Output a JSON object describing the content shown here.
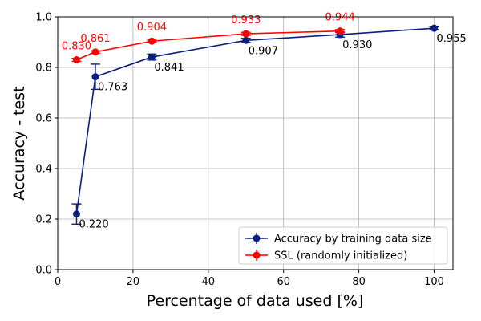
{
  "chart_data": {
    "type": "line",
    "title": "",
    "xlabel": "Percentage of data used [%]",
    "ylabel": "Accuracy - test",
    "xlim": [
      0,
      105
    ],
    "ylim": [
      0.0,
      1.0
    ],
    "xticks": [
      0,
      20,
      40,
      60,
      80,
      100
    ],
    "yticks": [
      0.0,
      0.2,
      0.4,
      0.6,
      0.8,
      1.0
    ],
    "xtick_labels": [
      "0",
      "20",
      "40",
      "60",
      "80",
      "100"
    ],
    "ytick_labels": [
      "0.0",
      "0.2",
      "0.4",
      "0.6",
      "0.8",
      "1.0"
    ],
    "grid": true,
    "legend_position": "bottom-right",
    "series": [
      {
        "name": "Accuracy by training data size",
        "color": "#0a1f7f",
        "marker": "circle",
        "x": [
          5,
          10,
          25,
          50,
          75,
          100
        ],
        "y": [
          0.22,
          0.763,
          0.841,
          0.907,
          0.93,
          0.955
        ],
        "yerr": [
          0.04,
          0.05,
          0.012,
          0.008,
          0.01,
          0.005
        ],
        "labels": [
          "0.220",
          "0.763",
          "0.841",
          "0.907",
          "0.930",
          "0.955"
        ],
        "label_position": "below-right",
        "label_color": "#000000"
      },
      {
        "name": "SSL (randomly initialized)",
        "color": "#ff0000",
        "marker": "circle",
        "x": [
          5,
          10,
          25,
          50,
          75
        ],
        "y": [
          0.83,
          0.861,
          0.904,
          0.933,
          0.944
        ],
        "yerr": [
          0.006,
          0.005,
          0.004,
          0.006,
          0.006
        ],
        "labels": [
          "0.830",
          "0.861",
          "0.904",
          "0.933",
          "0.944"
        ],
        "label_position": "above",
        "label_color": "#ff0000"
      }
    ]
  }
}
